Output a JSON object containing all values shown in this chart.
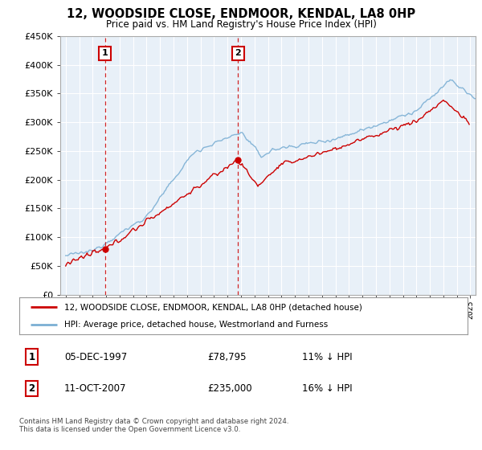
{
  "title": "12, WOODSIDE CLOSE, ENDMOOR, KENDAL, LA8 0HP",
  "subtitle": "Price paid vs. HM Land Registry's House Price Index (HPI)",
  "ylim": [
    0,
    450000
  ],
  "yticks": [
    0,
    50000,
    100000,
    150000,
    200000,
    250000,
    300000,
    350000,
    400000,
    450000
  ],
  "sale1_year": 1997.917,
  "sale1_price": 78795,
  "sale2_year": 2007.79,
  "sale2_price": 235000,
  "legend_property": "12, WOODSIDE CLOSE, ENDMOOR, KENDAL, LA8 0HP (detached house)",
  "legend_hpi": "HPI: Average price, detached house, Westmorland and Furness",
  "footer": "Contains HM Land Registry data © Crown copyright and database right 2024.\nThis data is licensed under the Open Government Licence v3.0.",
  "table_row1": [
    "1",
    "05-DEC-1997",
    "£78,795",
    "11% ↓ HPI"
  ],
  "table_row2": [
    "2",
    "11-OCT-2007",
    "£235,000",
    "16% ↓ HPI"
  ],
  "property_color": "#cc0000",
  "hpi_color": "#7bafd4",
  "vline_color": "#cc0000",
  "background_color": "#ffffff",
  "plot_bg_color": "#e8f0f8",
  "grid_color": "#ffffff"
}
